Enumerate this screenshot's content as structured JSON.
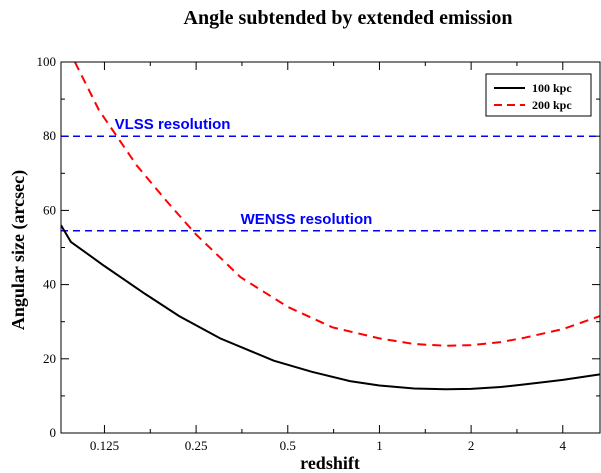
{
  "chart_data": {
    "type": "line",
    "title": "Angle subtended by extended emission",
    "xlabel": "redshift",
    "ylabel": "Angular size (arcsec)",
    "xscale": "log",
    "xlim": [
      0.09,
      5.3
    ],
    "ylim": [
      0,
      100
    ],
    "xticks": [
      {
        "value": 0.125,
        "label": "0.125"
      },
      {
        "value": 0.25,
        "label": "0.25"
      },
      {
        "value": 0.5,
        "label": "0.5"
      },
      {
        "value": 1,
        "label": "1"
      },
      {
        "value": 2,
        "label": "2"
      },
      {
        "value": 4,
        "label": "4"
      }
    ],
    "yticks": [
      0,
      20,
      40,
      60,
      80,
      100
    ],
    "legend_position": "top-right",
    "series": [
      {
        "name": "100 kpc",
        "color": "#000000",
        "dash": "solid",
        "x": [
          0.09,
          0.097,
          0.125,
          0.17,
          0.22,
          0.3,
          0.45,
          0.6,
          0.8,
          1.0,
          1.3,
          1.65,
          2.0,
          2.5,
          3.0,
          4.0,
          5.3
        ],
        "y": [
          56,
          51.5,
          45,
          37.5,
          31.5,
          25.5,
          19.5,
          16.5,
          14,
          12.8,
          12,
          11.8,
          11.9,
          12.4,
          13.1,
          14.3,
          15.8
        ]
      },
      {
        "name": "200 kpc",
        "color": "#ff0000",
        "dash": "dashed",
        "x": [
          0.1,
          0.12,
          0.16,
          0.2,
          0.25,
          0.35,
          0.5,
          0.7,
          1.0,
          1.3,
          1.65,
          2.0,
          2.5,
          3.0,
          4.0,
          5.3
        ],
        "y": [
          100,
          87,
          72,
          62.5,
          53.5,
          42,
          34,
          28.5,
          25.5,
          24,
          23.5,
          23.7,
          24.5,
          25.7,
          28,
          31.5
        ]
      }
    ],
    "reference_lines": [
      {
        "label": "VLSS resolution",
        "y": 80,
        "color": "#0000ff",
        "label_x": 0.135
      },
      {
        "label": "WENSS resolution",
        "y": 54.5,
        "color": "#0000ff",
        "label_x": 0.35
      }
    ],
    "grid": false
  }
}
